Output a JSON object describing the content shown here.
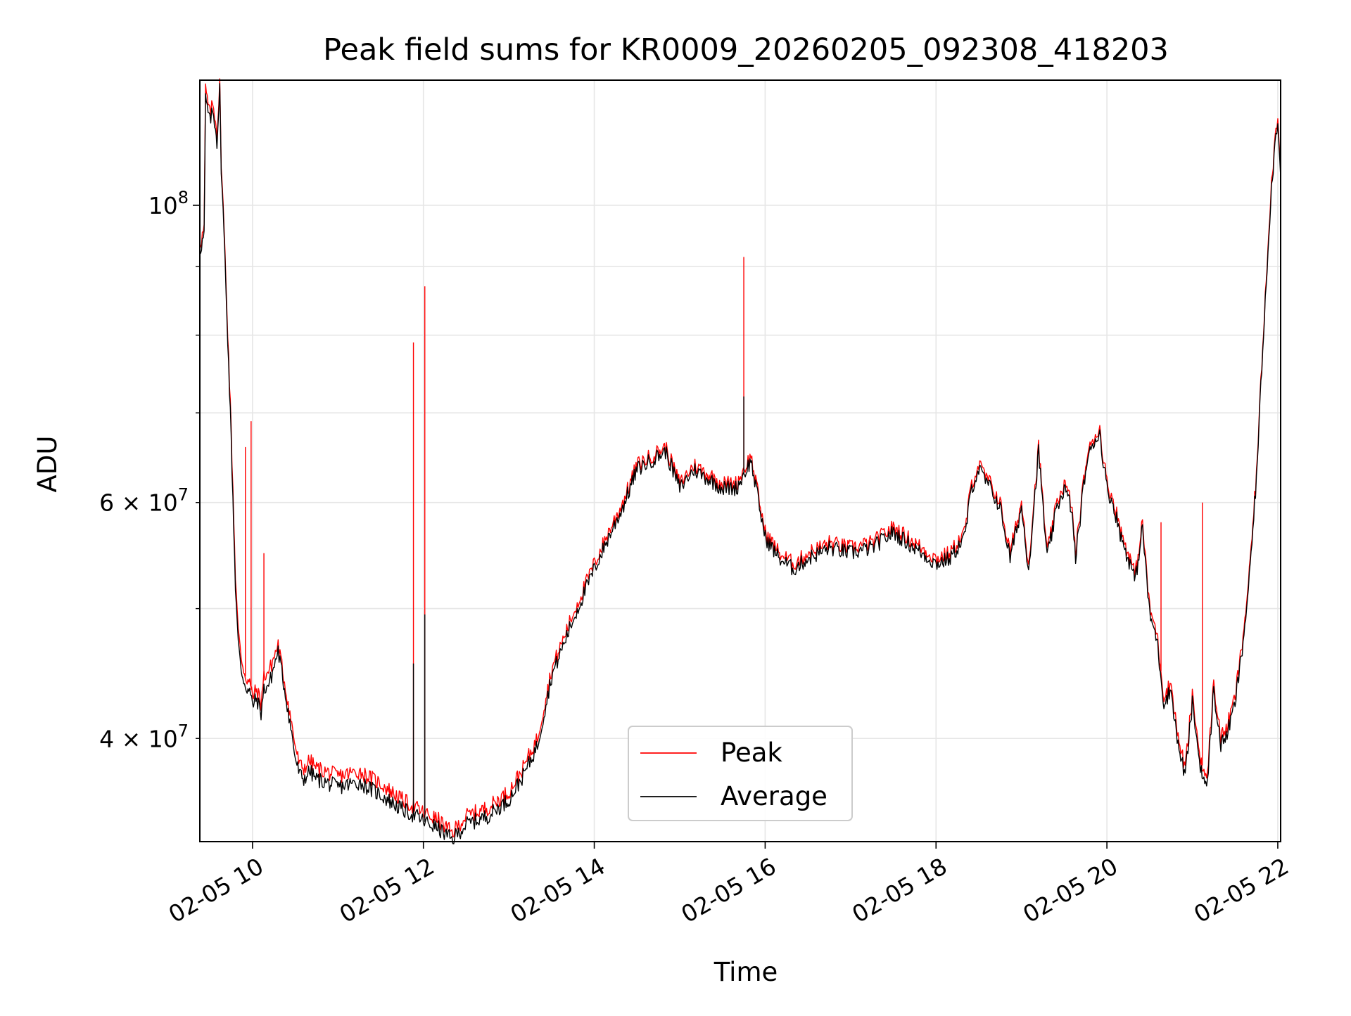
{
  "chart_data": {
    "type": "line",
    "title": "Peak field sums for KR0009_20260205_092308_418203",
    "xlabel": "Time",
    "ylabel": "ADU",
    "x_axis": {
      "kind": "datetime",
      "range": [
        "02-05 09:23",
        "02-05 22:02"
      ],
      "tick_values": [
        "02-05 10:00",
        "02-05 12:00",
        "02-05 14:00",
        "02-05 16:00",
        "02-05 18:00",
        "02-05 20:00",
        "02-05 22:00"
      ],
      "tick_labels": [
        "02-05 10",
        "02-05 12",
        "02-05 14",
        "02-05 16",
        "02-05 18",
        "02-05 20",
        "02-05 22"
      ],
      "tick_label_rotation_deg": 30
    },
    "y_axis": {
      "scale": "log",
      "range": [
        33500000,
        124000000
      ],
      "major_ticks": [
        100000000
      ],
      "major_tick_labels": [
        "10^8"
      ],
      "minor_ticks": [
        40000000,
        50000000,
        60000000,
        70000000,
        80000000,
        90000000
      ],
      "minor_tick_labels": [
        "4 × 10^7",
        "",
        "6 × 10^7",
        "",
        "",
        ""
      ]
    },
    "grid": true,
    "legend": {
      "position": "lower center",
      "entries": [
        "Peak",
        "Average"
      ]
    },
    "series": [
      {
        "name": "Peak",
        "color": "#ff0000",
        "x": [
          "02-05 09:23",
          "02-05 09:26",
          "02-05 09:27",
          "02-05 09:30",
          "02-05 09:32",
          "02-05 09:34",
          "02-05 09:35",
          "02-05 09:37",
          "02-05 09:38",
          "02-05 09:40",
          "02-05 09:42",
          "02-05 09:45",
          "02-05 09:48",
          "02-05 09:50",
          "02-05 09:52",
          "02-05 09:55",
          "02-05 09:58",
          "02-05 10:00",
          "02-05 10:03",
          "02-05 10:06",
          "02-05 10:08",
          "02-05 10:12",
          "02-05 10:18",
          "02-05 10:25",
          "02-05 10:30",
          "02-05 10:33",
          "02-05 10:36",
          "02-05 10:40",
          "02-05 10:45",
          "02-05 11:00",
          "02-05 11:15",
          "02-05 11:30",
          "02-05 11:45",
          "02-05 11:55",
          "02-05 12:00",
          "02-05 12:10",
          "02-05 12:20",
          "02-05 12:30",
          "02-05 12:45",
          "02-05 13:00",
          "02-05 13:10",
          "02-05 13:20",
          "02-05 13:30",
          "02-05 13:40",
          "02-05 13:50",
          "02-05 14:00",
          "02-05 14:10",
          "02-05 14:20",
          "02-05 14:30",
          "02-05 14:40",
          "02-05 14:50",
          "02-05 15:00",
          "02-05 15:10",
          "02-05 15:20",
          "02-05 15:30",
          "02-05 15:40",
          "02-05 15:50",
          "02-05 16:00",
          "02-05 16:10",
          "02-05 16:20",
          "02-05 16:30",
          "02-05 16:45",
          "02-05 17:00",
          "02-05 17:15",
          "02-05 17:30",
          "02-05 17:45",
          "02-05 18:00",
          "02-05 18:10",
          "02-05 18:20",
          "02-05 18:25",
          "02-05 18:30",
          "02-05 18:38",
          "02-05 18:45",
          "02-05 18:52",
          "02-05 19:00",
          "02-05 19:05",
          "02-05 19:12",
          "02-05 19:18",
          "02-05 19:25",
          "02-05 19:30",
          "02-05 19:35",
          "02-05 19:38",
          "02-05 19:45",
          "02-05 19:50",
          "02-05 19:55",
          "02-05 20:00",
          "02-05 20:05",
          "02-05 20:10",
          "02-05 20:15",
          "02-05 20:20",
          "02-05 20:25",
          "02-05 20:30",
          "02-05 20:35",
          "02-05 20:40",
          "02-05 20:45",
          "02-05 20:50",
          "02-05 20:55",
          "02-05 21:00",
          "02-05 21:05",
          "02-05 21:10",
          "02-05 21:15",
          "02-05 21:20",
          "02-05 21:25",
          "02-05 21:30",
          "02-05 21:35",
          "02-05 21:40",
          "02-05 21:45",
          "02-05 21:50",
          "02-05 21:55",
          "02-05 21:58",
          "02-05 22:00",
          "02-05 22:02"
        ],
        "y": [
          93500000,
          96000000,
          122000000,
          117000000,
          119000000,
          116000000,
          113000000,
          123000000,
          108000000,
          96000000,
          84000000,
          68000000,
          53000000,
          48000000,
          46000000,
          44500000,
          44000000,
          43000000,
          43500000,
          42500000,
          44500000,
          45000000,
          47000000,
          42500000,
          39500000,
          38200000,
          38000000,
          38500000,
          38000000,
          37500000,
          37800000,
          37000000,
          36000000,
          35500000,
          35200000,
          34800000,
          34000000,
          35000000,
          35500000,
          36500000,
          38000000,
          40000000,
          45000000,
          48000000,
          51000000,
          54000000,
          57000000,
          60000000,
          64000000,
          65000000,
          66000000,
          62000000,
          64000000,
          63000000,
          62000000,
          62000000,
          65000000,
          57000000,
          55000000,
          54000000,
          55000000,
          56000000,
          55500000,
          56000000,
          57500000,
          56000000,
          54500000,
          55000000,
          57000000,
          62000000,
          64000000,
          62000000,
          60000000,
          55000000,
          60000000,
          54000000,
          66000000,
          55000000,
          60000000,
          62000000,
          60000000,
          55000000,
          64000000,
          67000000,
          68000000,
          62000000,
          60000000,
          57000000,
          55000000,
          53000000,
          58000000,
          50000000,
          48000000,
          43000000,
          44000000,
          40000000,
          38000000,
          43000000,
          39000000,
          37000000,
          44000000,
          40000000,
          41000000,
          43000000,
          47000000,
          53000000,
          63000000,
          81000000,
          102000000,
          112000000,
          117000000,
          106000000
        ],
        "spikes": [
          {
            "x": "02-05 09:55",
            "y": 66000000
          },
          {
            "x": "02-05 09:59",
            "y": 69000000
          },
          {
            "x": "02-05 10:08",
            "y": 55000000
          },
          {
            "x": "02-05 11:53",
            "y": 79000000
          },
          {
            "x": "02-05 12:01",
            "y": 87000000
          },
          {
            "x": "02-05 15:45",
            "y": 91500000
          },
          {
            "x": "02-05 20:38",
            "y": 58000000
          },
          {
            "x": "02-05 21:07",
            "y": 60000000
          }
        ]
      },
      {
        "name": "Average",
        "color": "#000000",
        "x": [
          "02-05 09:23",
          "02-05 09:26",
          "02-05 09:27",
          "02-05 09:30",
          "02-05 09:32",
          "02-05 09:34",
          "02-05 09:35",
          "02-05 09:37",
          "02-05 09:38",
          "02-05 09:40",
          "02-05 09:42",
          "02-05 09:45",
          "02-05 09:48",
          "02-05 09:50",
          "02-05 09:52",
          "02-05 09:55",
          "02-05 09:58",
          "02-05 10:00",
          "02-05 10:03",
          "02-05 10:06",
          "02-05 10:08",
          "02-05 10:12",
          "02-05 10:18",
          "02-05 10:25",
          "02-05 10:30",
          "02-05 10:33",
          "02-05 10:36",
          "02-05 10:40",
          "02-05 10:45",
          "02-05 11:00",
          "02-05 11:15",
          "02-05 11:30",
          "02-05 11:45",
          "02-05 11:55",
          "02-05 12:00",
          "02-05 12:10",
          "02-05 12:20",
          "02-05 12:30",
          "02-05 12:45",
          "02-05 13:00",
          "02-05 13:10",
          "02-05 13:20",
          "02-05 13:30",
          "02-05 13:40",
          "02-05 13:50",
          "02-05 14:00",
          "02-05 14:10",
          "02-05 14:20",
          "02-05 14:30",
          "02-05 14:40",
          "02-05 14:50",
          "02-05 15:00",
          "02-05 15:10",
          "02-05 15:20",
          "02-05 15:30",
          "02-05 15:40",
          "02-05 15:50",
          "02-05 16:00",
          "02-05 16:10",
          "02-05 16:20",
          "02-05 16:30",
          "02-05 16:45",
          "02-05 17:00",
          "02-05 17:15",
          "02-05 17:30",
          "02-05 17:45",
          "02-05 18:00",
          "02-05 18:10",
          "02-05 18:20",
          "02-05 18:25",
          "02-05 18:30",
          "02-05 18:38",
          "02-05 18:45",
          "02-05 18:52",
          "02-05 19:00",
          "02-05 19:05",
          "02-05 19:12",
          "02-05 19:18",
          "02-05 19:25",
          "02-05 19:30",
          "02-05 19:35",
          "02-05 19:38",
          "02-05 19:45",
          "02-05 19:50",
          "02-05 19:55",
          "02-05 20:00",
          "02-05 20:05",
          "02-05 20:10",
          "02-05 20:15",
          "02-05 20:20",
          "02-05 20:25",
          "02-05 20:30",
          "02-05 20:35",
          "02-05 20:40",
          "02-05 20:45",
          "02-05 20:50",
          "02-05 20:55",
          "02-05 21:00",
          "02-05 21:05",
          "02-05 21:10",
          "02-05 21:15",
          "02-05 21:20",
          "02-05 21:25",
          "02-05 21:30",
          "02-05 21:35",
          "02-05 21:40",
          "02-05 21:45",
          "02-05 21:50",
          "02-05 21:55",
          "02-05 21:58",
          "02-05 22:00",
          "02-05 22:02"
        ],
        "y": [
          92500000,
          95000000,
          120000000,
          115500000,
          117500000,
          114500000,
          111500000,
          122000000,
          107000000,
          95000000,
          83000000,
          67000000,
          52000000,
          47000000,
          45000000,
          43800000,
          43300000,
          42400000,
          42800000,
          41800000,
          43500000,
          44000000,
          46500000,
          42000000,
          38700000,
          37600000,
          37300000,
          37800000,
          37300000,
          36800000,
          37100000,
          36300000,
          35400000,
          35000000,
          34700000,
          34300000,
          33600000,
          34500000,
          35000000,
          36000000,
          37500000,
          39500000,
          44500000,
          47500000,
          50500000,
          53500000,
          56500000,
          59500000,
          63500000,
          64500000,
          65500000,
          61500000,
          63500000,
          62500000,
          61500000,
          61500000,
          64500000,
          56500000,
          54500000,
          53500000,
          54500000,
          55500000,
          55000000,
          55500000,
          57000000,
          55500000,
          54000000,
          54500000,
          56500000,
          61500000,
          63500000,
          61500000,
          59500000,
          54500000,
          59500000,
          53500000,
          65500000,
          54500000,
          59500000,
          61500000,
          59500000,
          54500000,
          63500000,
          66500000,
          67500000,
          61500000,
          59500000,
          56500000,
          54500000,
          52500000,
          57500000,
          49500000,
          47500000,
          42500000,
          43500000,
          39500000,
          37500000,
          42500000,
          38500000,
          36500000,
          43500000,
          39500000,
          40500000,
          42500000,
          46500000,
          52500000,
          62500000,
          80500000,
          101000000,
          111000000,
          116000000,
          105000000
        ],
        "spikes": [
          {
            "x": "02-05 11:53",
            "y": 45500000
          },
          {
            "x": "02-05 12:01",
            "y": 49500000
          },
          {
            "x": "02-05 15:45",
            "y": 72000000
          }
        ]
      }
    ]
  }
}
